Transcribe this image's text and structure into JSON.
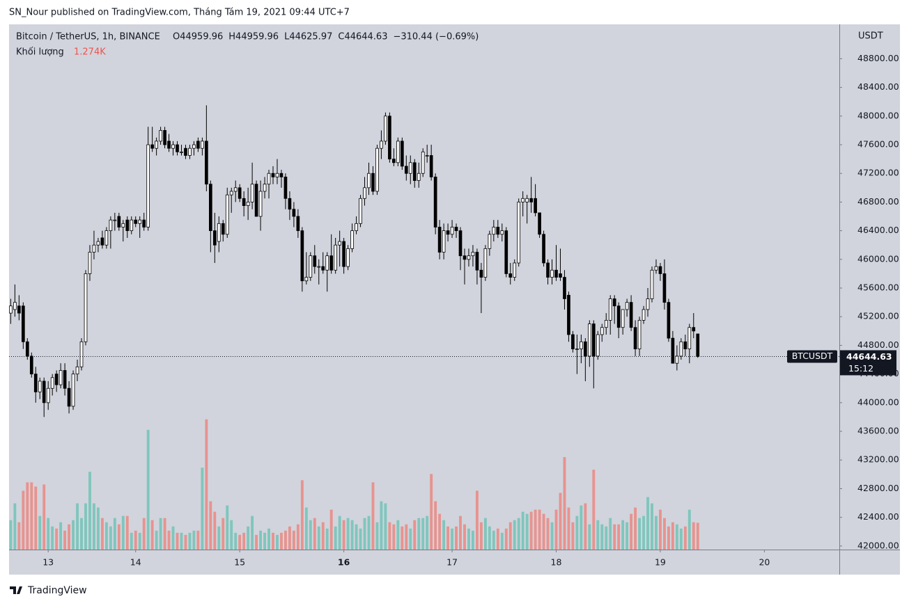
{
  "published": "SN_Nour published on TradingView.com, Tháng Tám 19, 2021 09:44 UTC+7",
  "footer": "TradingView",
  "chart_data": {
    "type": "candlestick",
    "symbol": "Bitcoin / TetherUS, 1h, BINANCE",
    "legend_keys": [
      "O",
      "H",
      "L",
      "C"
    ],
    "change": "−310.44 (−0.69%)",
    "volume_title": "Khối lượng",
    "volume_value_label": "1.274K",
    "currency": "USDT",
    "ticker": "BTCUSDT",
    "countdown": "15:12",
    "up_color": "#ffffff",
    "down_color": "#000000",
    "volume_up_color": "#7fc6bd",
    "volume_down_color": "#e8938f",
    "ylim": [
      41950,
      49280
    ],
    "vlim": [
      0,
      25
    ],
    "xlim": [
      -0.4,
      199
    ],
    "yticks": [
      {
        "value": 42000,
        "label": "42000.00"
      },
      {
        "value": 42400,
        "label": "42400.00"
      },
      {
        "value": 42800,
        "label": "42800.00"
      },
      {
        "value": 43200,
        "label": "43200.00"
      },
      {
        "value": 43600,
        "label": "43600.00"
      },
      {
        "value": 44000,
        "label": "44000.00"
      },
      {
        "value": 44400,
        "label": "44400.00"
      },
      {
        "value": 44800,
        "label": "44800.00"
      },
      {
        "value": 45200,
        "label": "45200.00"
      },
      {
        "value": 45600,
        "label": "45600.00"
      },
      {
        "value": 46000,
        "label": "46000.00"
      },
      {
        "value": 46400,
        "label": "46400.00"
      },
      {
        "value": 46800,
        "label": "46800.00"
      },
      {
        "value": 47200,
        "label": "47200.00"
      },
      {
        "value": 47600,
        "label": "47600.00"
      },
      {
        "value": 48000,
        "label": "48000.00"
      },
      {
        "value": 48400,
        "label": "48400.00"
      },
      {
        "value": 48800,
        "label": "48800.00"
      }
    ],
    "xticks": [
      {
        "value": 9,
        "label": "13"
      },
      {
        "value": 30,
        "label": "14"
      },
      {
        "value": 55,
        "label": "15"
      },
      {
        "value": 80,
        "label": "16"
      },
      {
        "value": 106,
        "label": "17"
      },
      {
        "value": 131,
        "label": "18"
      },
      {
        "value": 156,
        "label": "19"
      },
      {
        "value": 181,
        "label": "20"
      }
    ],
    "open": [
      45250,
      45300,
      45350,
      45350,
      44850,
      44650,
      44400,
      44150,
      44300,
      44000,
      44200,
      44400,
      44250,
      44450,
      44200,
      43950,
      44400,
      44500,
      44850,
      45800,
      46100,
      46200,
      46300,
      46200,
      46400,
      46550,
      46600,
      46450,
      46550,
      46400,
      46550,
      46500,
      46550,
      46450,
      47600,
      47550,
      47650,
      47800,
      47650,
      47550,
      47600,
      47500,
      47550,
      47450,
      47550,
      47650,
      47550,
      47650,
      47050,
      46400,
      46250,
      46500,
      46350,
      46900,
      46950,
      47000,
      46850,
      46750,
      46800,
      47050,
      46600,
      46950,
      47050,
      47200,
      47150,
      47200,
      47150,
      46850,
      46700,
      46600,
      46400,
      45700,
      45750,
      46050,
      45900,
      45900,
      45850,
      46050,
      45850,
      46200,
      46250,
      45900,
      46150,
      46400,
      46500,
      46850,
      47000,
      47200,
      46950,
      47550,
      47650,
      48000,
      47400,
      47350,
      47650,
      47300,
      47200,
      47350,
      47100,
      47200,
      47450,
      47450,
      47150,
      46450,
      46100,
      46400,
      46350,
      46450,
      46400,
      46050,
      46000,
      46050,
      46100,
      45850,
      45750,
      46150,
      46350,
      46450,
      46350,
      46400,
      45800,
      45750,
      45950,
      46800,
      46800,
      46850,
      46850,
      46650,
      46350,
      45950,
      45750,
      45850,
      45800,
      45750,
      45500,
      44950,
      44750,
      44750,
      44850,
      44650,
      45100,
      44650,
      44950,
      45050,
      45150,
      45450,
      45350,
      45050,
      45300,
      45400,
      45050,
      44750,
      45150,
      45300,
      45450,
      45850,
      45900,
      45800,
      45400,
      44900,
      44550,
      44650,
      44850,
      44750,
      45050,
      44959.96
    ],
    "high": [
      45450,
      45650,
      45500,
      45400,
      44900,
      44700,
      44500,
      44350,
      44350,
      44300,
      44400,
      44450,
      44550,
      44550,
      44300,
      44450,
      44600,
      44900,
      45850,
      46200,
      46400,
      46300,
      46400,
      46450,
      46600,
      46650,
      46650,
      46550,
      46600,
      46600,
      46600,
      46600,
      46650,
      47850,
      47850,
      47700,
      47850,
      47850,
      47750,
      47650,
      47650,
      47600,
      47600,
      47600,
      47650,
      47700,
      47700,
      48150,
      47100,
      46650,
      46600,
      46550,
      47000,
      47000,
      47100,
      47050,
      46950,
      47000,
      47350,
      47100,
      47100,
      47150,
      47250,
      47300,
      47400,
      47250,
      47200,
      46950,
      46800,
      46700,
      46450,
      46100,
      46100,
      46200,
      46000,
      46100,
      46100,
      46350,
      46300,
      46400,
      46300,
      46200,
      46500,
      46600,
      46900,
      47150,
      47350,
      47300,
      47600,
      47800,
      48050,
      48050,
      47550,
      47700,
      47700,
      47450,
      47450,
      47400,
      47350,
      47550,
      47600,
      47600,
      47200,
      46550,
      46500,
      46500,
      46550,
      46500,
      46450,
      46150,
      46150,
      46200,
      46150,
      45950,
      46200,
      46400,
      46550,
      46550,
      46500,
      46450,
      45950,
      46000,
      46850,
      46950,
      46900,
      47150,
      47050,
      46650,
      46400,
      46000,
      46000,
      46200,
      46150,
      45850,
      45550,
      45000,
      44950,
      44950,
      44900,
      45150,
      45150,
      45000,
      45100,
      45250,
      45500,
      45500,
      45400,
      45300,
      45450,
      45500,
      45150,
      45200,
      45350,
      45600,
      45900,
      46000,
      45950,
      46000,
      45450,
      45000,
      44800,
      44900,
      44950,
      45100,
      45250,
      44959.96
    ],
    "low": [
      45100,
      45200,
      45150,
      44750,
      44600,
      44350,
      44000,
      44050,
      43800,
      43900,
      44100,
      44150,
      44200,
      44100,
      43850,
      43900,
      44300,
      44450,
      44800,
      45700,
      46000,
      46100,
      46150,
      46150,
      46150,
      46400,
      46400,
      46250,
      46300,
      46350,
      46450,
      46300,
      46400,
      46400,
      47500,
      47450,
      47600,
      47550,
      47500,
      47450,
      47450,
      47450,
      47400,
      47400,
      47450,
      47500,
      47450,
      46950,
      46100,
      45950,
      46100,
      46250,
      46300,
      46650,
      46800,
      46800,
      46600,
      46550,
      46700,
      46600,
      46400,
      46850,
      46850,
      47050,
      47050,
      47000,
      46700,
      46550,
      46450,
      46300,
      45550,
      45650,
      45700,
      45800,
      45650,
      45800,
      45550,
      45800,
      45800,
      45900,
      45800,
      45850,
      46100,
      46350,
      46450,
      46750,
      46900,
      46900,
      46900,
      47400,
      47600,
      47350,
      47300,
      47300,
      47250,
      47100,
      47050,
      47000,
      47000,
      47150,
      47350,
      47100,
      46350,
      46000,
      46000,
      46250,
      46300,
      46300,
      45850,
      45650,
      45900,
      45900,
      45650,
      45250,
      45700,
      46050,
      46250,
      46300,
      46250,
      45750,
      45650,
      45700,
      45900,
      46600,
      46500,
      46650,
      46600,
      46300,
      45900,
      45650,
      45650,
      45700,
      45700,
      45300,
      44850,
      44700,
      44400,
      44550,
      44300,
      44500,
      44200,
      44600,
      44850,
      44950,
      44950,
      45100,
      44900,
      44950,
      45200,
      45000,
      44650,
      44650,
      45100,
      45200,
      45400,
      45800,
      45700,
      45300,
      44850,
      44550,
      44450,
      44600,
      44650,
      44550,
      44900,
      44625.97
    ],
    "close": [
      45350,
      45400,
      45250,
      44850,
      44650,
      44400,
      44150,
      44300,
      44000,
      44200,
      44350,
      44250,
      44450,
      44200,
      43950,
      44400,
      44500,
      44850,
      45800,
      46100,
      46200,
      46250,
      46200,
      46400,
      46550,
      46550,
      46450,
      46500,
      46400,
      46550,
      46500,
      46550,
      46450,
      47600,
      47550,
      47650,
      47800,
      47600,
      47550,
      47600,
      47500,
      47500,
      47450,
      47550,
      47600,
      47550,
      47650,
      47050,
      46400,
      46200,
      46500,
      46350,
      46900,
      46950,
      47000,
      46850,
      46750,
      46800,
      47050,
      46600,
      46950,
      47050,
      47200,
      47150,
      47200,
      47150,
      46850,
      46700,
      46600,
      46400,
      45700,
      45750,
      46050,
      45900,
      45900,
      45850,
      46050,
      45850,
      46200,
      46250,
      45900,
      46150,
      46400,
      46500,
      46850,
      47000,
      47200,
      46950,
      47550,
      47650,
      48000,
      47400,
      47350,
      47650,
      47300,
      47200,
      47350,
      47100,
      47200,
      47500,
      47450,
      47150,
      46450,
      46100,
      46400,
      46350,
      46450,
      46400,
      46050,
      46000,
      46050,
      46100,
      45850,
      45750,
      46150,
      46350,
      46450,
      46350,
      46400,
      45800,
      45750,
      45950,
      46800,
      46850,
      46850,
      46800,
      46650,
      46350,
      45950,
      45750,
      45850,
      45750,
      45750,
      45450,
      44950,
      44750,
      44750,
      44850,
      44650,
      45100,
      44650,
      44950,
      45050,
      45150,
      45450,
      45350,
      45050,
      45300,
      45400,
      45050,
      44750,
      45150,
      45300,
      45450,
      45850,
      45900,
      45800,
      45400,
      44900,
      44550,
      44650,
      44850,
      44750,
      45050,
      45000,
      44644.63
    ],
    "volume": [
      1.4,
      2.2,
      1.3,
      2.8,
      3.2,
      3.2,
      3.0,
      1.6,
      3.1,
      1.5,
      1.1,
      1.0,
      1.3,
      0.9,
      1.2,
      1.4,
      2.2,
      1.5,
      2.2,
      3.7,
      2.2,
      2.0,
      1.5,
      1.3,
      1.1,
      1.5,
      1.2,
      1.6,
      1.6,
      0.8,
      0.9,
      0.8,
      1.5,
      5.7,
      1.4,
      0.9,
      1.5,
      1.5,
      0.9,
      1.1,
      0.8,
      0.8,
      0.7,
      0.8,
      0.9,
      0.9,
      3.9,
      6.2,
      2.3,
      1.8,
      1.1,
      1.5,
      2.1,
      1.4,
      0.8,
      0.7,
      0.8,
      1.1,
      1.6,
      0.7,
      0.9,
      0.8,
      1.0,
      0.8,
      0.7,
      0.8,
      0.9,
      1.1,
      0.9,
      1.2,
      3.3,
      2.0,
      1.4,
      1.5,
      1.1,
      1.3,
      1.0,
      1.9,
      1.1,
      1.6,
      1.4,
      1.5,
      1.4,
      1.2,
      1.0,
      1.5,
      1.6,
      3.2,
      1.3,
      2.3,
      2.2,
      1.3,
      1.2,
      1.4,
      1.1,
      1.2,
      1.0,
      1.4,
      1.5,
      1.5,
      1.6,
      3.6,
      2.3,
      1.7,
      1.4,
      1.1,
      1.0,
      1.1,
      1.6,
      1.2,
      1.0,
      0.9,
      2.8,
      1.3,
      1.5,
      1.1,
      0.9,
      1.0,
      0.8,
      1.0,
      1.3,
      1.4,
      1.5,
      1.8,
      1.7,
      1.8,
      1.9,
      1.9,
      1.7,
      1.5,
      1.3,
      1.9,
      2.7,
      4.4,
      2.0,
      1.3,
      1.6,
      2.1,
      2.2,
      1.2,
      3.8,
      1.4,
      1.2,
      1.1,
      1.5,
      1.2,
      1.2,
      1.4,
      1.3,
      1.7,
      2.0,
      1.5,
      1.6,
      2.5,
      2.2,
      1.6,
      1.9,
      1.5,
      1.1,
      1.3,
      1.2,
      1.0,
      1.1,
      1.9,
      1.3,
      1.274
    ]
  }
}
